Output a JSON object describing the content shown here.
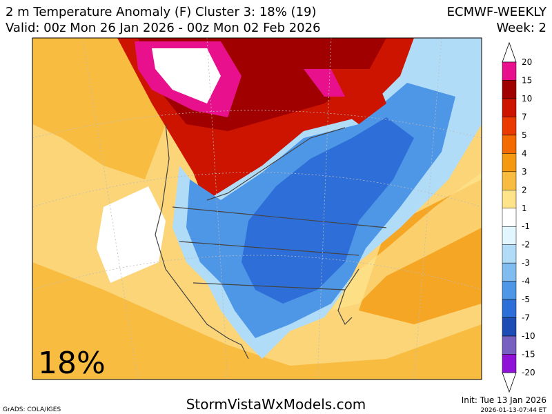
{
  "header": {
    "title": "2 m Temperature Anomaly (F) Cluster 3: 18% (19)",
    "model": "ECMWF-WEEKLY",
    "valid": "Valid: 00z Mon 26 Jan 2026 - 00z Mon 02 Feb 2026",
    "week": "Week: 2"
  },
  "map": {
    "cluster_label": "18%"
  },
  "colorbar": {
    "labels": [
      "20",
      "15",
      "10",
      "7",
      "5",
      "4",
      "3",
      "2",
      "1",
      "-1",
      "-2",
      "-3",
      "-4",
      "-5",
      "-7",
      "-10",
      "-15",
      "-20"
    ],
    "colors": [
      "#e8108c",
      "#a00000",
      "#cc1400",
      "#ea3a00",
      "#f26a00",
      "#f59a10",
      "#f8bc40",
      "#fde38a",
      "#ffffff",
      "#e2f6ff",
      "#b0dcf8",
      "#80bcf0",
      "#4e96e6",
      "#2e6ed8",
      "#1c4cb4",
      "#7860c0",
      "#9012d8"
    ]
  },
  "footer": {
    "credit": "GrADS: COLA/IGES",
    "site": "StormVistaWxModels.com",
    "init": "Init: Tue 13 Jan 2026",
    "timestamp": "2026-01-13-07:44 ET"
  }
}
